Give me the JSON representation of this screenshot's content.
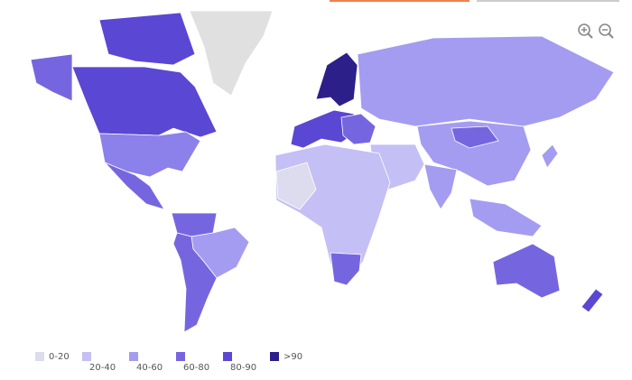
{
  "legend": {
    "items": [
      {
        "label": "0-20",
        "color": "#dcdcee"
      },
      {
        "label": "20-40",
        "color": "#c4bff5"
      },
      {
        "label": "40-60",
        "color": "#a49cf1"
      },
      {
        "label": "60-80",
        "color": "#7566e0"
      },
      {
        "label": "80-90",
        "color": "#5a47d3"
      },
      {
        "label": ">90",
        "color": "#2c1f8a"
      }
    ]
  }
}
